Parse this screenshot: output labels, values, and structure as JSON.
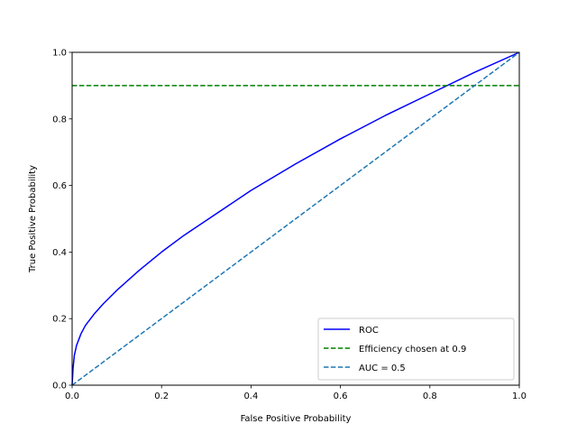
{
  "chart_data": {
    "type": "line",
    "xlabel": "False Positive Probability",
    "ylabel": "True Positive Probability",
    "xlim": [
      0,
      1
    ],
    "ylim": [
      0,
      1
    ],
    "grid": false,
    "legend_position": "lower-right",
    "x_ticks": [
      "0.0",
      "0.2",
      "0.4",
      "0.6",
      "0.8",
      "1.0"
    ],
    "y_ticks": [
      "0.0",
      "0.2",
      "0.4",
      "0.6",
      "0.8",
      "1.0"
    ],
    "series": [
      {
        "name": "ROC",
        "color": "#0000ff",
        "style": "solid",
        "x": [
          0.0,
          0.002,
          0.005,
          0.01,
          0.02,
          0.03,
          0.05,
          0.07,
          0.1,
          0.15,
          0.2,
          0.25,
          0.3,
          0.4,
          0.5,
          0.6,
          0.7,
          0.8,
          0.9,
          1.0
        ],
        "y": [
          0.0,
          0.05,
          0.09,
          0.12,
          0.155,
          0.18,
          0.215,
          0.245,
          0.285,
          0.345,
          0.4,
          0.45,
          0.495,
          0.585,
          0.665,
          0.74,
          0.81,
          0.875,
          0.94,
          1.0
        ]
      },
      {
        "name": "Efficiency chosen at 0.9",
        "color": "#008000",
        "style": "dashed",
        "x": [
          0.0,
          1.0
        ],
        "y": [
          0.9,
          0.9
        ]
      },
      {
        "name": "AUC = 0.5",
        "color": "#1f77b4",
        "style": "dashed",
        "x": [
          0.0,
          1.0
        ],
        "y": [
          0.0,
          1.0
        ]
      }
    ]
  }
}
